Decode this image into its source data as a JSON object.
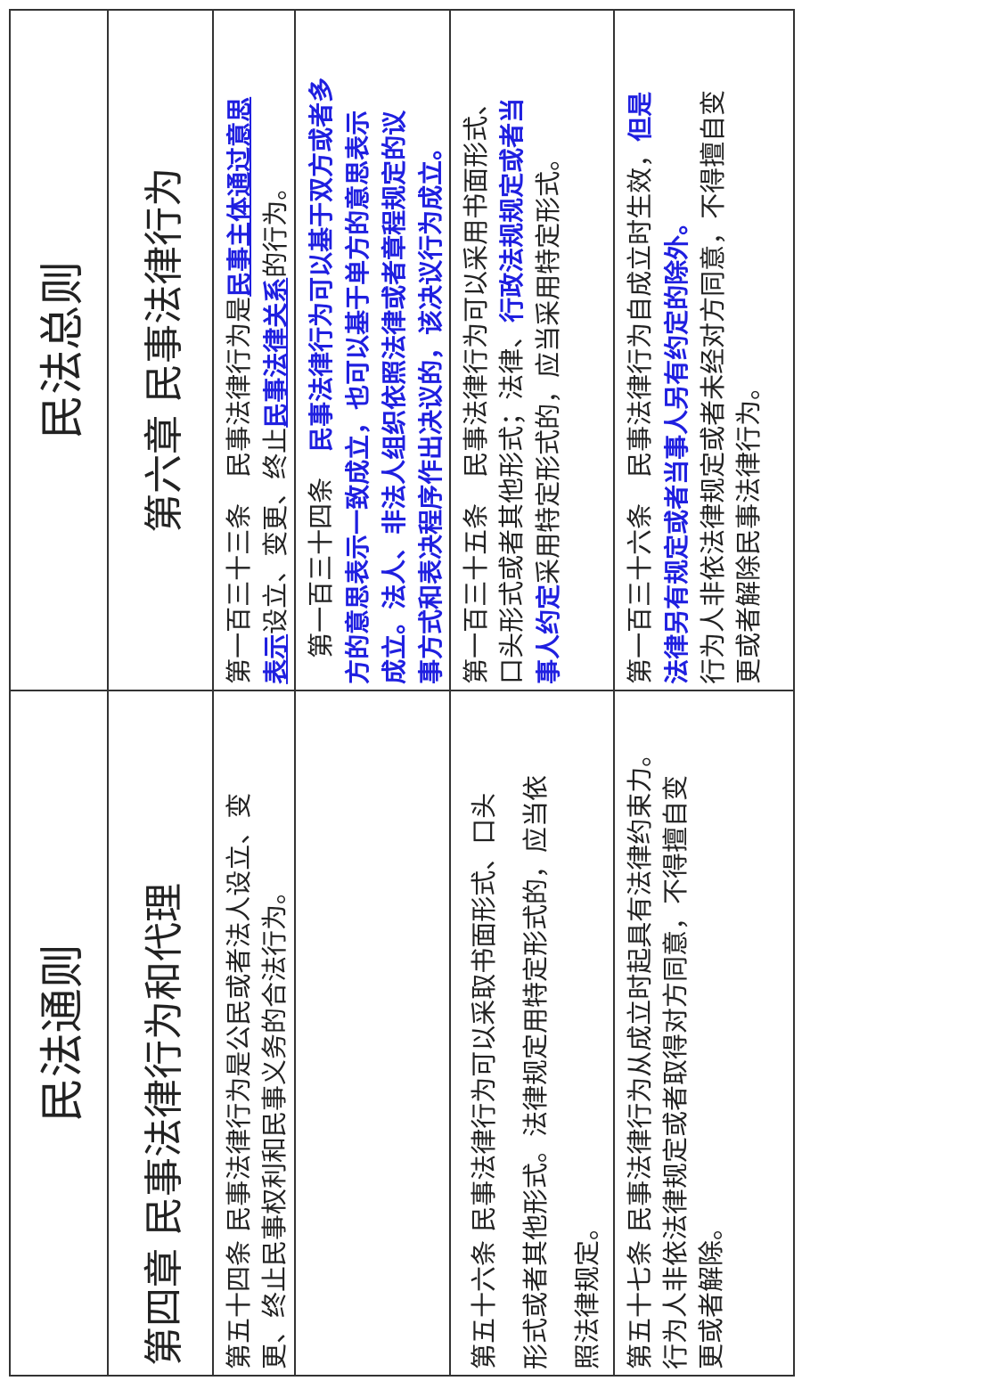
{
  "headers": {
    "left": "民法通则",
    "right": "民法总则"
  },
  "chapters": {
    "left": "第四章  民事法律行为和代理",
    "right": "第六章  民事法律行为"
  },
  "highlight_color": "#1f1fe0",
  "rows": [
    {
      "left": [
        [
          {
            "t": "第五十四条 民事法律行为是公民或者法人设立、变"
          }
        ],
        [
          {
            "t": "更、终止民事权利和民事义务的合法行为。"
          }
        ]
      ],
      "right": [
        [
          {
            "t": "第一百三十三条　民事法律行为是"
          },
          {
            "t": "民事主体通过意思",
            "hl": true,
            "ul": true
          }
        ],
        [
          {
            "t": "表示",
            "hl": true,
            "ul": true
          },
          {
            "t": "设立、变更、终止"
          },
          {
            "t": "民事法律关系",
            "hl": true,
            "ul": true
          },
          {
            "t": "的行为。"
          }
        ]
      ]
    },
    {
      "left": [],
      "right": [
        [
          {
            "t": "　第一百三十四条　"
          },
          {
            "t": "民事法律行为可以基于双方或者多",
            "hl": true
          }
        ],
        [
          {
            "t": "方的意思表示一致成立，也可以基于单方的意思表示",
            "hl": true
          }
        ],
        [
          {
            "t": "成立。法人、非法人组织依照法律或者章程规定的议",
            "hl": true
          }
        ],
        [
          {
            "t": "事方式和表决程序作出决议的，该决议行为成立。",
            "hl": true
          }
        ]
      ]
    },
    {
      "left": [
        [
          {
            "t": "第五十六条 民事法律行为可以采取书面形式、口头"
          }
        ],
        [
          {
            "t": "形式或者其他形式。法律规定用特定形式的，应当依"
          }
        ],
        [
          {
            "t": "照法律规定。"
          }
        ]
      ],
      "right": [
        [
          {
            "t": "第一百三十五条　民事法律行为可以采用书面形式、"
          }
        ],
        [
          {
            "t": "口头形式或者其他形式；法律、"
          },
          {
            "t": "行政法规规定或者当",
            "hl": true
          }
        ],
        [
          {
            "t": "事人约定",
            "hl": true
          },
          {
            "t": "采用特定形式的，应当采用特定形式。"
          }
        ]
      ]
    },
    {
      "left": [
        [
          {
            "t": "第五十七条 民事法律行为从成立时起具有法律约束力。"
          }
        ],
        [
          {
            "t": "行为人非依法律规定或者取得对方同意，不得擅自变"
          }
        ],
        [
          {
            "t": "更或者解除。"
          }
        ]
      ],
      "right": [
        [
          {
            "t": "第一百三十六条　民事法律行为自成立时生效，"
          },
          {
            "t": "但是",
            "hl": true
          }
        ],
        [
          {
            "t": "法律另有规定或者当事人另有约定的除外。",
            "hl": true
          }
        ],
        [
          {
            "t": "行为人非依法律规定或者未经对方同意，不得擅自变"
          }
        ],
        [
          {
            "t": "更或者解除民事法律行为。"
          }
        ]
      ]
    }
  ]
}
